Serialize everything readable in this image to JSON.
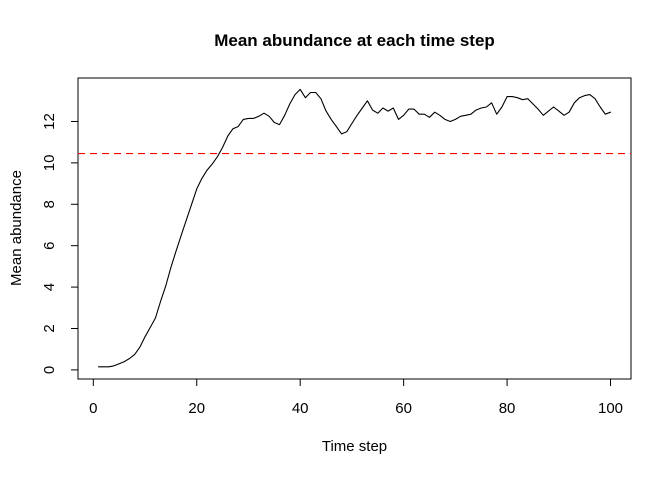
{
  "window": {
    "background": "#ffffff"
  },
  "chart_data": {
    "type": "line",
    "title": "Mean abundance at each time step",
    "xlabel": "Time step",
    "ylabel": "Mean abundance",
    "x_ticks": [
      0,
      20,
      40,
      60,
      80,
      100
    ],
    "y_ticks": [
      0,
      2,
      4,
      6,
      8,
      10,
      12
    ],
    "xlim": [
      -2.96,
      103.96
    ],
    "ylim": [
      -0.44,
      14.1
    ],
    "grid": false,
    "legend": "none",
    "axis_color": "#000000",
    "series": [
      {
        "name": "mean-abundance",
        "color": "#000000",
        "line_style": "solid",
        "x_start": 1,
        "x_step": 1,
        "y": [
          0.15,
          0.15,
          0.15,
          0.2,
          0.3,
          0.4,
          0.55,
          0.75,
          1.1,
          1.6,
          2.05,
          2.5,
          3.3,
          4.05,
          4.95,
          5.75,
          6.5,
          7.25,
          8.0,
          8.75,
          9.25,
          9.65,
          9.95,
          10.3,
          10.75,
          11.3,
          11.65,
          11.75,
          12.1,
          12.15,
          12.15,
          12.25,
          12.4,
          12.25,
          11.95,
          11.85,
          12.3,
          12.85,
          13.3,
          13.55,
          13.15,
          13.4,
          13.4,
          13.1,
          12.5,
          12.1,
          11.75,
          11.4,
          11.5,
          11.9,
          12.3,
          12.65,
          13.0,
          12.55,
          12.4,
          12.65,
          12.5,
          12.65,
          12.1,
          12.3,
          12.6,
          12.6,
          12.35,
          12.35,
          12.2,
          12.45,
          12.3,
          12.1,
          12.0,
          12.1,
          12.25,
          12.3,
          12.35,
          12.55,
          12.65,
          12.7,
          12.9,
          12.35,
          12.7,
          13.2,
          13.2,
          13.15,
          13.05,
          13.1,
          12.85,
          12.6,
          12.3,
          12.5,
          12.7,
          12.5,
          12.3,
          12.45,
          12.9,
          13.15,
          13.25,
          13.3,
          13.1,
          12.7,
          12.35,
          12.45
        ]
      }
    ],
    "reference_line": {
      "y": 10.45,
      "color": "#ff0000",
      "line_style": "dashed"
    }
  }
}
